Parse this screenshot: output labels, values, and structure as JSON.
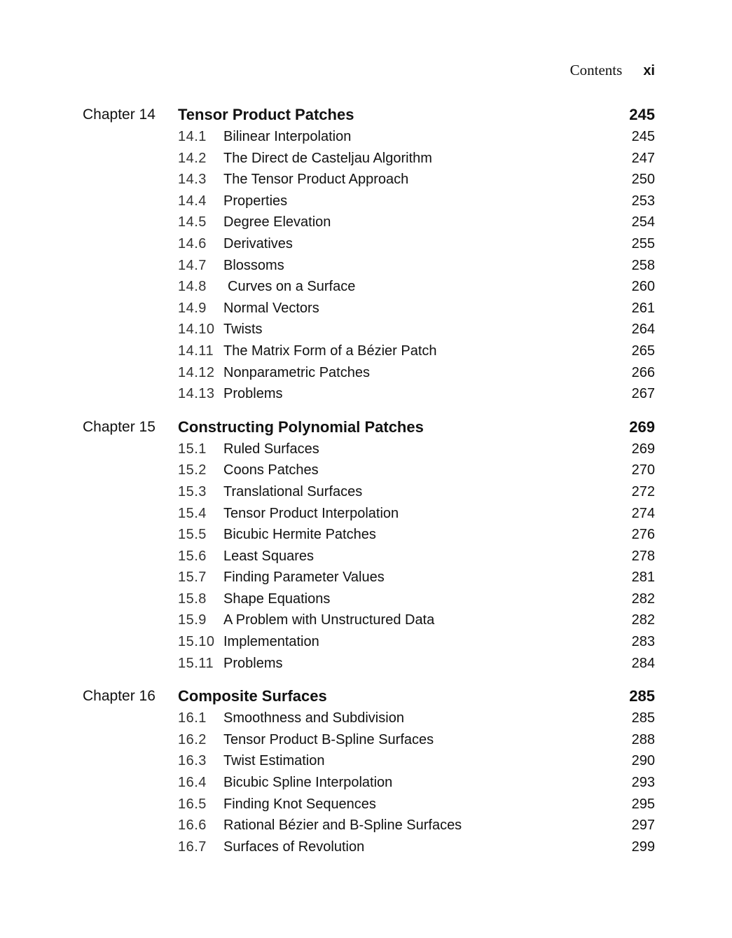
{
  "running_head": {
    "label": "Contents",
    "page": "xi"
  },
  "chapters": [
    {
      "label": "Chapter 14",
      "title": "Tensor Product Patches",
      "page": "245",
      "sections": [
        {
          "num": "14.1",
          "title": "Bilinear Interpolation",
          "page": "245"
        },
        {
          "num": "14.2",
          "title": "The Direct de Casteljau Algorithm",
          "page": "247"
        },
        {
          "num": "14.3",
          "title": "The Tensor Product Approach",
          "page": "250"
        },
        {
          "num": "14.4",
          "title": "Properties",
          "page": "253"
        },
        {
          "num": "14.5",
          "title": "Degree Elevation",
          "page": "254"
        },
        {
          "num": "14.6",
          "title": "Derivatives",
          "page": "255"
        },
        {
          "num": "14.7",
          "title": "Blossoms",
          "page": "258"
        },
        {
          "num": "14.8",
          "title": "Curves on a Surface",
          "page": "260"
        },
        {
          "num": "14.9",
          "title": "Normal Vectors",
          "page": "261"
        },
        {
          "num": "14.10",
          "title": "Twists",
          "page": "264"
        },
        {
          "num": "14.11",
          "title": "The Matrix Form of a Bézier Patch",
          "page": "265"
        },
        {
          "num": "14.12",
          "title": "Nonparametric Patches",
          "page": "266"
        },
        {
          "num": "14.13",
          "title": "Problems",
          "page": "267"
        }
      ]
    },
    {
      "label": "Chapter 15",
      "title": "Constructing Polynomial Patches",
      "page": "269",
      "sections": [
        {
          "num": "15.1",
          "title": "Ruled Surfaces",
          "page": "269"
        },
        {
          "num": "15.2",
          "title": "Coons Patches",
          "page": "270"
        },
        {
          "num": "15.3",
          "title": "Translational Surfaces",
          "page": "272"
        },
        {
          "num": "15.4",
          "title": "Tensor Product Interpolation",
          "page": "274"
        },
        {
          "num": "15.5",
          "title": "Bicubic Hermite Patches",
          "page": "276"
        },
        {
          "num": "15.6",
          "title": "Least Squares",
          "page": "278"
        },
        {
          "num": "15.7",
          "title": "Finding Parameter Values",
          "page": "281"
        },
        {
          "num": "15.8",
          "title": "Shape Equations",
          "page": "282"
        },
        {
          "num": "15.9",
          "title": "A Problem with Unstructured Data",
          "page": "282"
        },
        {
          "num": "15.10",
          "title": "Implementation",
          "page": "283"
        },
        {
          "num": "15.11",
          "title": "Problems",
          "page": "284"
        }
      ]
    },
    {
      "label": "Chapter 16",
      "title": "Composite Surfaces",
      "page": "285",
      "sections": [
        {
          "num": "16.1",
          "title": "Smoothness and Subdivision",
          "page": "285"
        },
        {
          "num": "16.2",
          "title": "Tensor Product B-Spline Surfaces",
          "page": "288"
        },
        {
          "num": "16.3",
          "title": "Twist Estimation",
          "page": "290"
        },
        {
          "num": "16.4",
          "title": "Bicubic Spline Interpolation",
          "page": "293"
        },
        {
          "num": "16.5",
          "title": "Finding Knot Sequences",
          "page": "295"
        },
        {
          "num": "16.6",
          "title": "Rational Bézier and B-Spline Surfaces",
          "page": "297"
        },
        {
          "num": "16.7",
          "title": "Surfaces of Revolution",
          "page": "299"
        }
      ]
    }
  ]
}
